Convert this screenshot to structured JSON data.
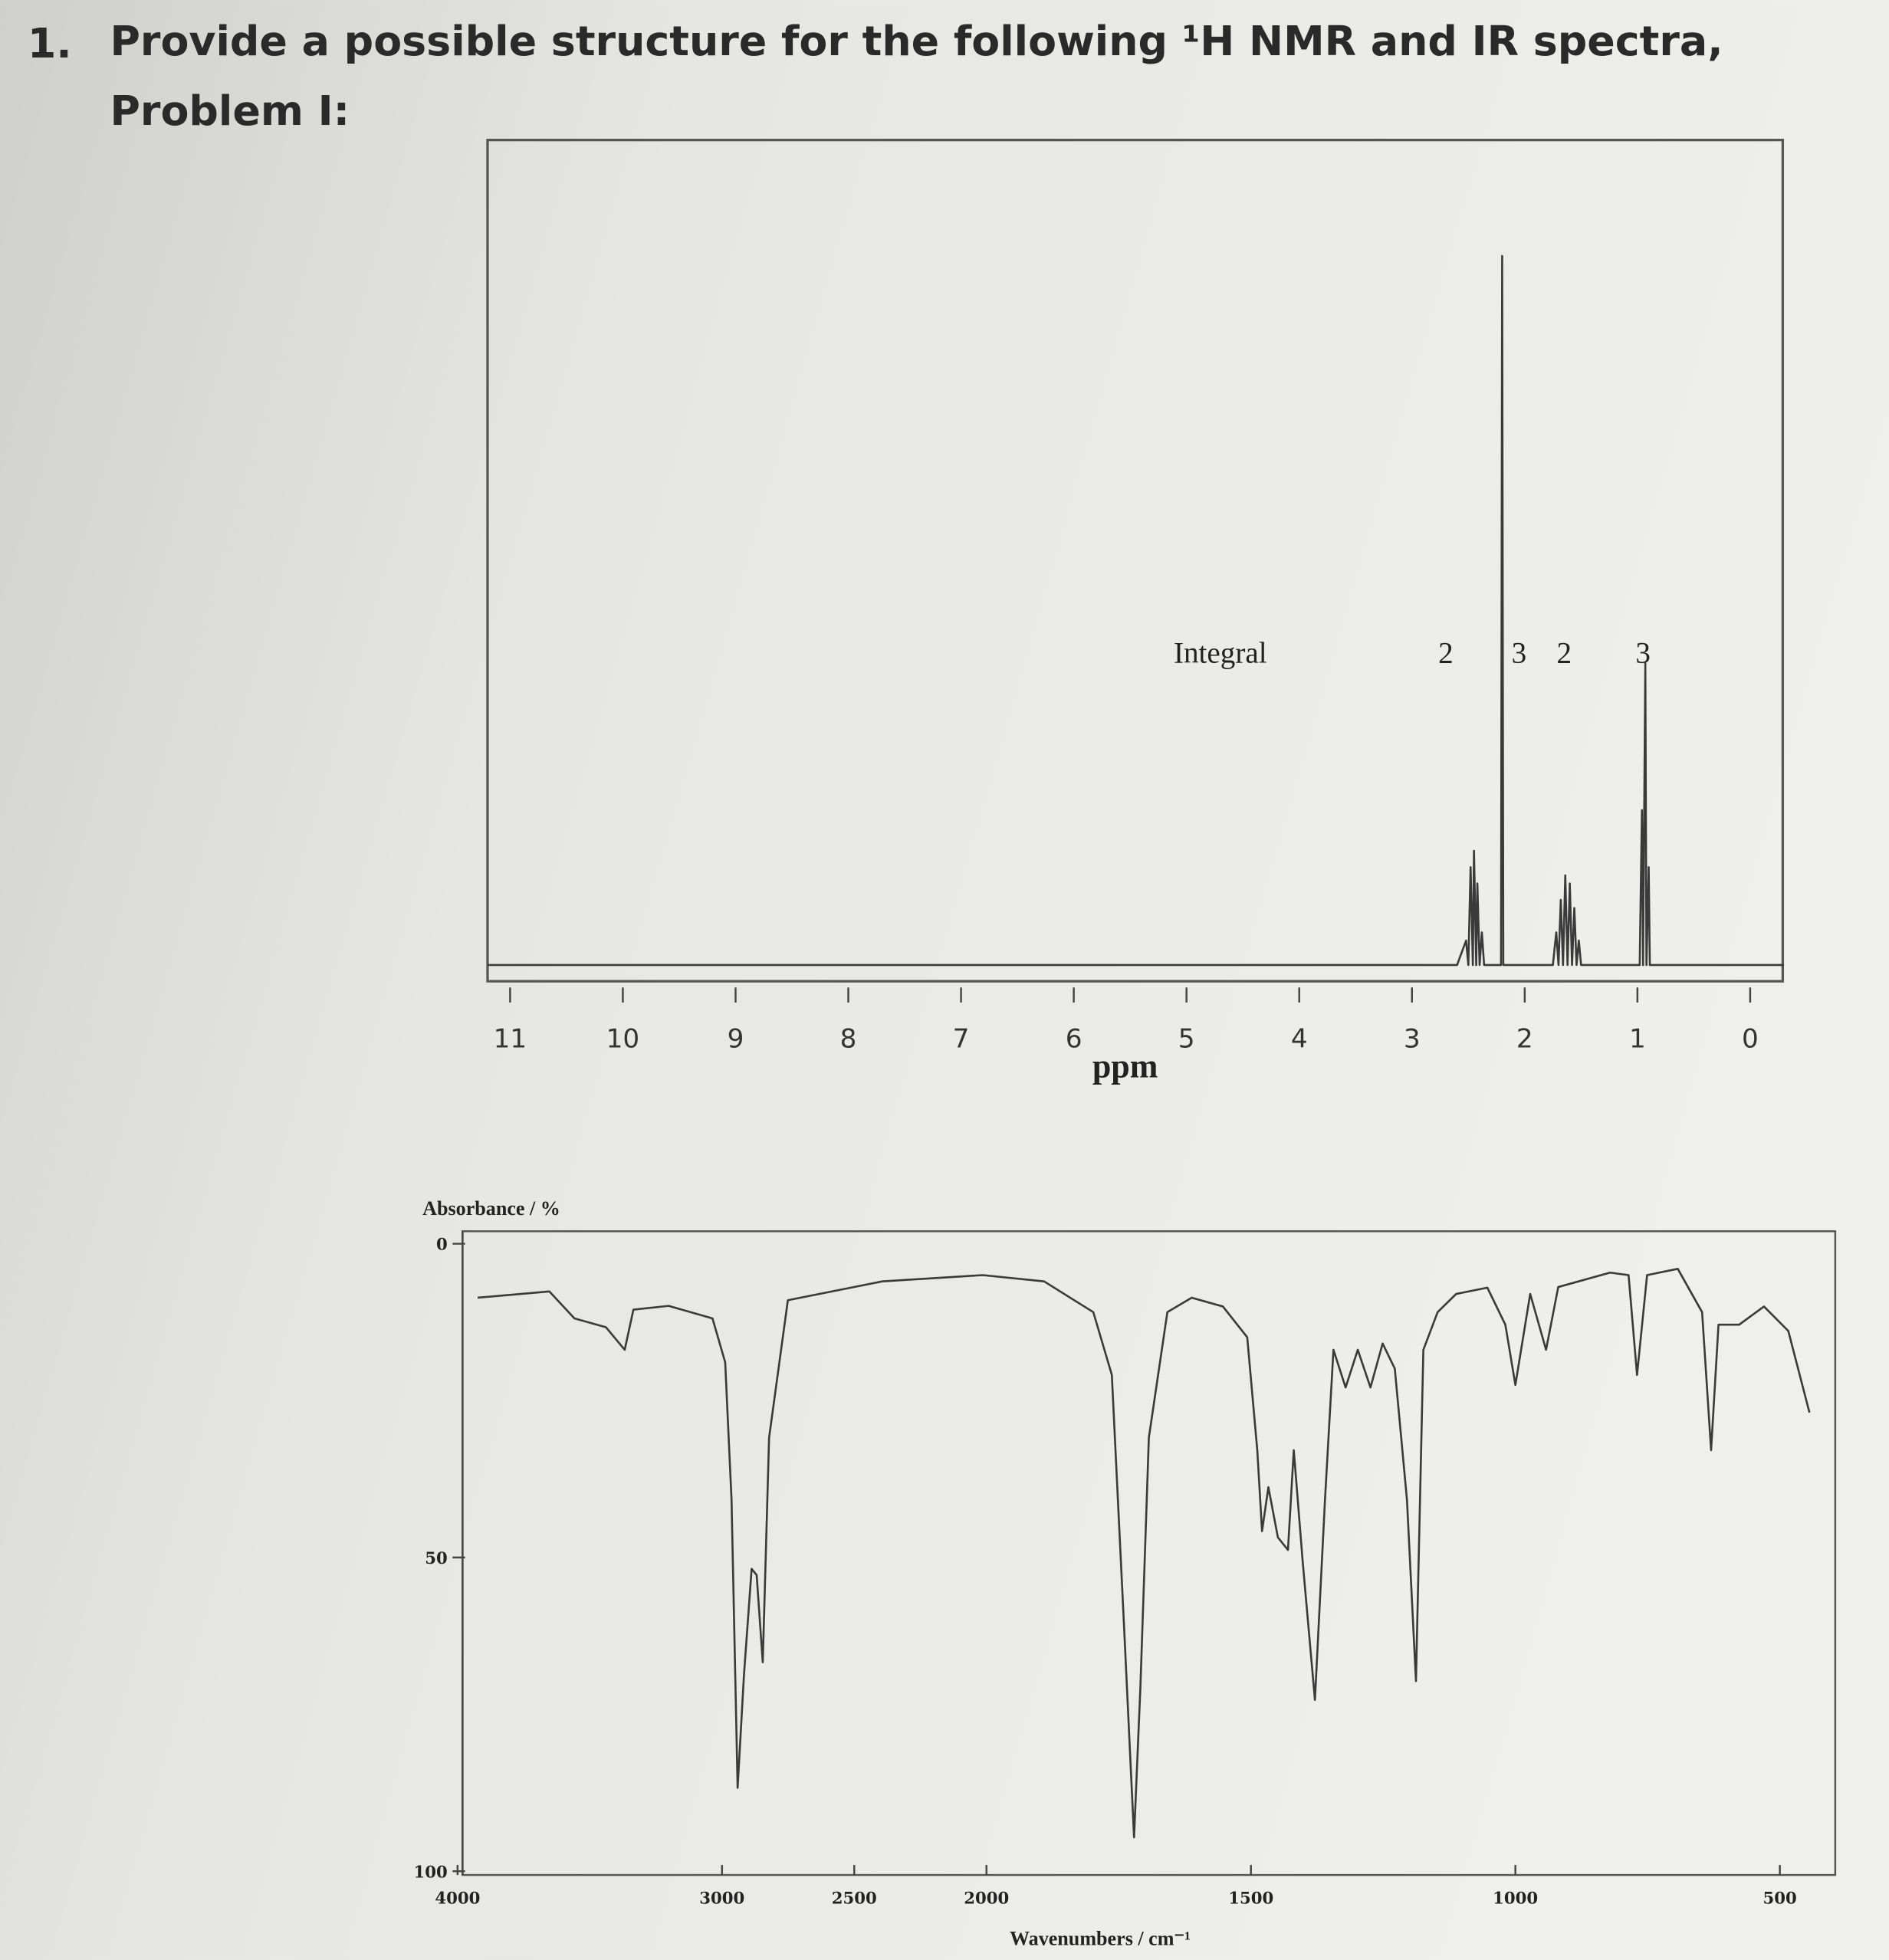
{
  "question": {
    "number": "1.",
    "text": "Provide a possible structure for the following ¹H NMR and IR spectra,",
    "subtitle": "Problem I:"
  },
  "chart_data": [
    {
      "type": "line",
      "x_label": "ppm",
      "xlim": [
        11.2,
        -0.3
      ],
      "xticks": [
        11,
        10,
        9,
        8,
        7,
        6,
        5,
        4,
        3,
        2,
        1,
        0
      ],
      "ylim": [
        0,
        100
      ],
      "color": "#3a3a3a",
      "annotations": [
        {
          "text": "Integral",
          "x": 4.7
        },
        {
          "text": "2",
          "x": 2.7
        },
        {
          "text": "3",
          "x": 2.05
        },
        {
          "text": "2",
          "x": 1.65
        },
        {
          "text": "3",
          "x": 0.95
        }
      ],
      "x": [
        11.2,
        2.6,
        2.52,
        2.5,
        2.48,
        2.46,
        2.45,
        2.43,
        2.42,
        2.4,
        2.38,
        2.36,
        2.21,
        2.2,
        2.19,
        1.75,
        1.72,
        1.7,
        1.68,
        1.66,
        1.64,
        1.62,
        1.6,
        1.58,
        1.56,
        1.54,
        1.52,
        1.5,
        0.98,
        0.96,
        0.95,
        0.93,
        0.92,
        0.9,
        0.89,
        -0.3
      ],
      "values": [
        0,
        0,
        3,
        0,
        12,
        0,
        14,
        0,
        10,
        0,
        4,
        0,
        0,
        87,
        0,
        0,
        4,
        0,
        8,
        0,
        11,
        0,
        10,
        0,
        7,
        0,
        3,
        0,
        0,
        19,
        0,
        37,
        0,
        12,
        0,
        0
      ]
    },
    {
      "type": "line",
      "y_label": "Absorbance / %",
      "x_label": "Wavenumbers / cm⁻¹",
      "xlim": [
        4000,
        400
      ],
      "xticks": [
        4000,
        3000,
        2500,
        2000,
        1500,
        1000,
        500
      ],
      "xscale": "piecewise",
      "xbreak": 2000,
      "ylim": [
        0,
        100
      ],
      "yticks": [
        0,
        50,
        100
      ],
      "y_inverted": true,
      "color": "#3a3a3a",
      "x": [
        3924,
        3653,
        3558,
        3439,
        3368,
        3335,
        3202,
        3036,
        2988,
        2964,
        2941,
        2917,
        2888,
        2869,
        2846,
        2822,
        2751,
        2394,
        2014,
        1891,
        1798,
        1763,
        1740,
        1721,
        1709,
        1693,
        1658,
        1612,
        1553,
        1507,
        1488,
        1479,
        1467,
        1449,
        1430,
        1419,
        1402,
        1379,
        1360,
        1344,
        1321,
        1298,
        1274,
        1251,
        1228,
        1205,
        1188,
        1174,
        1147,
        1112,
        1053,
        1019,
        1000,
        972,
        942,
        919,
        821,
        786,
        770,
        751,
        693,
        647,
        630,
        616,
        577,
        530,
        484,
        444
      ],
      "values": [
        8.6,
        7.6,
        11.9,
        13.3,
        16.9,
        10.5,
        9.9,
        11.9,
        18.9,
        40.8,
        86.7,
        68.7,
        51.8,
        52.8,
        66.7,
        30.9,
        9.0,
        6.0,
        5.0,
        6.0,
        10.9,
        20.9,
        60.8,
        94.6,
        70.7,
        30.9,
        10.9,
        8.6,
        10.0,
        14.9,
        32.9,
        45.8,
        38.8,
        46.8,
        48.8,
        32.9,
        50.8,
        72.7,
        40.8,
        16.9,
        22.9,
        16.9,
        22.9,
        15.9,
        19.9,
        40.8,
        69.7,
        16.9,
        10.9,
        8.0,
        7.0,
        12.9,
        22.5,
        8.0,
        16.9,
        6.9,
        4.6,
        5.0,
        20.9,
        5.0,
        4.0,
        10.9,
        32.9,
        12.9,
        12.9,
        10.0,
        13.9,
        26.9
      ]
    }
  ]
}
